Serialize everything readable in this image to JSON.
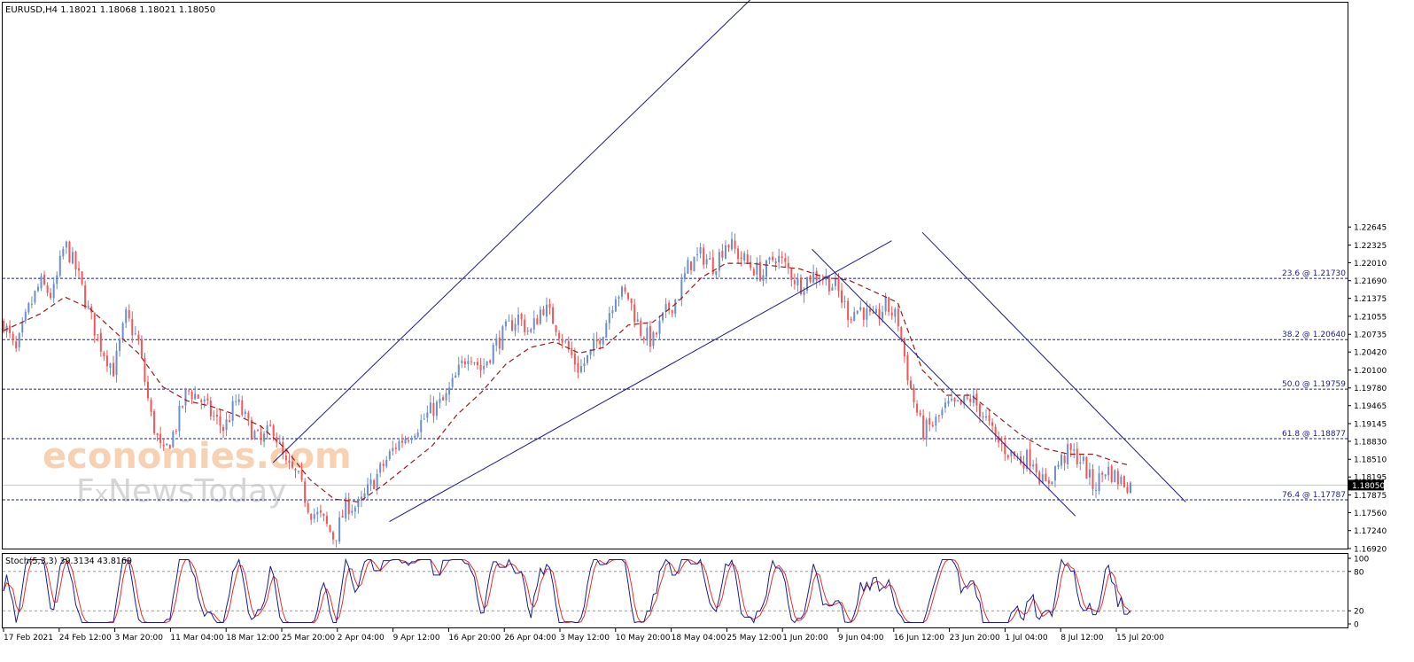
{
  "colors": {
    "background": "#ffffff",
    "frame": "#000000",
    "bull_candle": "#6b8fc7",
    "bear_candle": "#f25656",
    "moving_average": "#9b1b1b",
    "trendline": "#1c1c8c",
    "fib_level": "#1c1c8c",
    "current_price_line": "#b7c7d8",
    "current_price_box": "#000000",
    "stoch_main": "#1c1c8c",
    "stoch_signal": "#e53030",
    "stoch_level": "#9a9a9a",
    "watermark_orange": "#f6c9a4",
    "watermark_gray": "#cfcfcf"
  },
  "chart_data": [
    {
      "type": "candlestick",
      "title": "EURUSD,H4  1.18021 1.18068 1.18021 1.18050",
      "symbol": "EURUSD",
      "timeframe": "H4",
      "ohlc_readout": [
        1.18021,
        1.18068,
        1.18021,
        1.1805
      ],
      "ylim": [
        1.1692,
        1.2664
      ],
      "y_ticks": [
        "1.22645",
        "1.22325",
        "1.22010",
        "1.21690",
        "1.21375",
        "1.21055",
        "1.20735",
        "1.20420",
        "1.20100",
        "1.19780",
        "1.19465",
        "1.19145",
        "1.18830",
        "1.18510",
        "1.18195",
        "1.17875",
        "1.17560",
        "1.17240",
        "1.16920"
      ],
      "x_ticks": [
        "17 Feb 2021",
        "24 Feb 12:00",
        "3 Mar 20:00",
        "11 Mar 04:00",
        "18 Mar 12:00",
        "25 Mar 20:00",
        "2 Apr 04:00",
        "9 Apr 12:00",
        "16 Apr 20:00",
        "26 Apr 04:00",
        "3 May 12:00",
        "10 May 20:00",
        "18 May 04:00",
        "25 May 12:00",
        "1 Jun 20:00",
        "9 Jun 04:00",
        "16 Jun 12:00",
        "23 Jun 20:00",
        "1 Jul 04:00",
        "8 Jul 12:00",
        "15 Jul 20:00"
      ],
      "current_price": "1.18050",
      "close_path": [
        [
          0,
          1.2095
        ],
        [
          2,
          1.204
        ],
        [
          4,
          1.2115
        ],
        [
          6,
          1.2165
        ],
        [
          8,
          1.214
        ],
        [
          10,
          1.2235
        ],
        [
          12,
          1.2185
        ],
        [
          14,
          1.211
        ],
        [
          16,
          1.205
        ],
        [
          18,
          1.201
        ],
        [
          20,
          1.2105
        ],
        [
          22,
          1.206
        ],
        [
          24,
          1.193
        ],
        [
          26,
          1.1855
        ],
        [
          28,
          1.1905
        ],
        [
          30,
          1.1975
        ],
        [
          32,
          1.196
        ],
        [
          34,
          1.193
        ],
        [
          36,
          1.1905
        ],
        [
          38,
          1.1955
        ],
        [
          40,
          1.191
        ],
        [
          42,
          1.188
        ],
        [
          44,
          1.191
        ],
        [
          46,
          1.184
        ],
        [
          48,
          1.182
        ],
        [
          50,
          1.176
        ],
        [
          52,
          1.1745
        ],
        [
          54,
          1.171
        ],
        [
          56,
          1.177
        ],
        [
          58,
          1.1765
        ],
        [
          60,
          1.1805
        ],
        [
          62,
          1.184
        ],
        [
          64,
          1.1875
        ],
        [
          66,
          1.1895
        ],
        [
          68,
          1.1915
        ],
        [
          70,
          1.194
        ],
        [
          72,
          1.1955
        ],
        [
          74,
          1.2
        ],
        [
          76,
          1.2045
        ],
        [
          78,
          1.201
        ],
        [
          80,
          1.205
        ],
        [
          82,
          1.208
        ],
        [
          84,
          1.2105
        ],
        [
          86,
          1.2075
        ],
        [
          88,
          1.2125
        ],
        [
          90,
          1.2095
        ],
        [
          92,
          1.205
        ],
        [
          94,
          1.201
        ],
        [
          96,
          1.204
        ],
        [
          98,
          1.2085
        ],
        [
          100,
          1.215
        ],
        [
          102,
          1.214
        ],
        [
          104,
          1.208
        ],
        [
          106,
          1.206
        ],
        [
          108,
          1.211
        ],
        [
          110,
          1.214
        ],
        [
          112,
          1.22
        ],
        [
          114,
          1.2215
        ],
        [
          116,
          1.2195
        ],
        [
          118,
          1.224
        ],
        [
          120,
          1.2215
        ],
        [
          122,
          1.2195
        ],
        [
          124,
          1.218
        ],
        [
          126,
          1.2215
        ],
        [
          128,
          1.219
        ],
        [
          130,
          1.216
        ],
        [
          132,
          1.218
        ],
        [
          134,
          1.2175
        ],
        [
          136,
          1.2155
        ],
        [
          138,
          1.211
        ],
        [
          140,
          1.212
        ],
        [
          142,
          1.2095
        ],
        [
          144,
          1.2125
        ],
        [
          146,
          1.21
        ],
        [
          148,
          1.198
        ],
        [
          150,
          1.19
        ],
        [
          152,
          1.1915
        ],
        [
          154,
          1.1945
        ],
        [
          156,
          1.1945
        ],
        [
          158,
          1.196
        ],
        [
          160,
          1.193
        ],
        [
          162,
          1.1885
        ],
        [
          164,
          1.1865
        ],
        [
          166,
          1.185
        ],
        [
          168,
          1.1855
        ],
        [
          170,
          1.18
        ],
        [
          172,
          1.184
        ],
        [
          174,
          1.1865
        ],
        [
          176,
          1.185
        ],
        [
          178,
          1.18
        ],
        [
          180,
          1.1835
        ],
        [
          182,
          1.1815
        ],
        [
          184,
          1.1805
        ]
      ],
      "moving_average_path": [
        [
          0,
          1.208
        ],
        [
          6,
          1.211
        ],
        [
          10,
          1.214
        ],
        [
          14,
          1.212
        ],
        [
          18,
          1.208
        ],
        [
          22,
          1.204
        ],
        [
          26,
          1.198
        ],
        [
          30,
          1.1955
        ],
        [
          34,
          1.1945
        ],
        [
          38,
          1.193
        ],
        [
          42,
          1.191
        ],
        [
          46,
          1.187
        ],
        [
          50,
          1.1815
        ],
        [
          54,
          1.178
        ],
        [
          58,
          1.1775
        ],
        [
          62,
          1.1805
        ],
        [
          66,
          1.184
        ],
        [
          70,
          1.1875
        ],
        [
          74,
          1.193
        ],
        [
          78,
          1.197
        ],
        [
          82,
          1.202
        ],
        [
          86,
          1.205
        ],
        [
          90,
          1.206
        ],
        [
          94,
          1.204
        ],
        [
          98,
          1.205
        ],
        [
          102,
          1.209
        ],
        [
          106,
          1.2095
        ],
        [
          110,
          1.213
        ],
        [
          114,
          1.2175
        ],
        [
          118,
          1.22
        ],
        [
          122,
          1.22
        ],
        [
          126,
          1.2195
        ],
        [
          130,
          1.219
        ],
        [
          134,
          1.2175
        ],
        [
          138,
          1.217
        ],
        [
          142,
          1.215
        ],
        [
          146,
          1.213
        ],
        [
          150,
          1.201
        ],
        [
          154,
          1.1965
        ],
        [
          158,
          1.1965
        ],
        [
          162,
          1.193
        ],
        [
          166,
          1.1895
        ],
        [
          170,
          1.187
        ],
        [
          174,
          1.186
        ],
        [
          178,
          1.186
        ],
        [
          182,
          1.1845
        ],
        [
          184,
          1.184
        ]
      ],
      "fibonacci_levels": [
        {
          "label": "23.6 @ 1.21730",
          "value": 1.2173
        },
        {
          "label": "38.2 @ 1.20640",
          "value": 1.2064
        },
        {
          "label": "50.0 @ 1.19759",
          "value": 1.19759
        },
        {
          "label": "61.8 @ 1.18877",
          "value": 1.18877
        },
        {
          "label": "76.4 @ 1.17787",
          "value": 1.17787
        }
      ],
      "trendlines": [
        {
          "from": [
            44,
            1.1845
          ],
          "to": [
            122,
            1.267
          ]
        },
        {
          "from": [
            63,
            1.174
          ],
          "to": [
            145,
            1.224
          ]
        },
        {
          "from": [
            132,
            1.2225
          ],
          "to": [
            175,
            1.175
          ]
        },
        {
          "from": [
            150,
            1.2255
          ],
          "to": [
            193,
            1.1775
          ]
        }
      ]
    },
    {
      "type": "line",
      "title": "Stoch(5,3,3) 39.3134 43.8169",
      "indicator": "Stoch(5,3,3)",
      "main_value": "39.3134",
      "signal_value": "43.8169",
      "ylim": [
        0,
        100
      ],
      "y_ticks": [
        "100",
        "80",
        "20",
        "0"
      ],
      "levels": [
        80,
        20
      ]
    }
  ],
  "watermark": {
    "line1": "economies.com",
    "line2_a": "F",
    "line2_b": "x",
    "line2_c": "NewsToday"
  }
}
